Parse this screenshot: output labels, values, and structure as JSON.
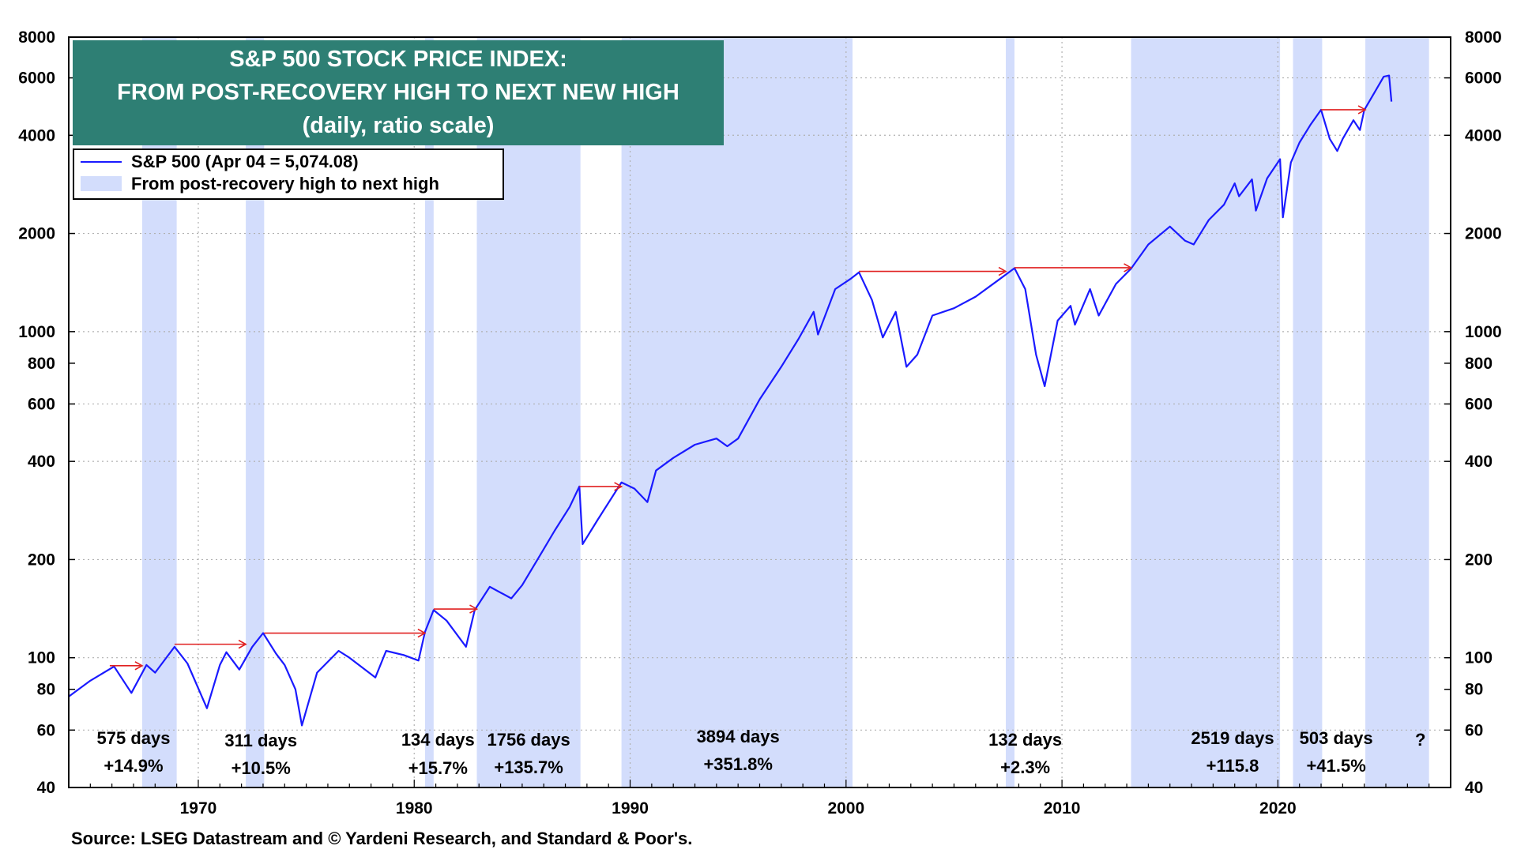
{
  "chart_data": {
    "type": "line",
    "title": [
      "S&P 500 STOCK PRICE INDEX:",
      "FROM POST-RECOVERY HIGH TO NEXT NEW HIGH",
      "(daily, ratio scale)"
    ],
    "y_scale": "log",
    "ylim": [
      40,
      8000
    ],
    "xlim": [
      1964,
      2028
    ],
    "x_ticks": [
      1970,
      1980,
      1990,
      2000,
      2010,
      2020
    ],
    "x_tick_labels": [
      "1970",
      "1980",
      "1990",
      "2000",
      "2010",
      "2020"
    ],
    "y_ticks": [
      40,
      60,
      80,
      100,
      200,
      400,
      600,
      800,
      1000,
      2000,
      4000,
      6000,
      8000
    ],
    "y_tick_labels": [
      "40",
      "60",
      "80",
      "100",
      "200",
      "400",
      "600",
      "800",
      "1000",
      "2000",
      "4000",
      "6000",
      "8000"
    ],
    "grid": true,
    "legend": {
      "position": "top-left",
      "entries": [
        {
          "label": "S&P 500 (Apr 04 = 5,074.08)",
          "style": "line",
          "color": "#1a1aff"
        },
        {
          "label": "From post-recovery high to next high",
          "style": "band",
          "color": "#d3ddfc"
        }
      ]
    },
    "series": [
      {
        "name": "S&P 500",
        "color": "#1a1aff",
        "points": [
          [
            1964.0,
            76
          ],
          [
            1965.0,
            85
          ],
          [
            1966.1,
            94
          ],
          [
            1966.9,
            78
          ],
          [
            1967.6,
            95
          ],
          [
            1968.0,
            90
          ],
          [
            1968.9,
            108
          ],
          [
            1969.5,
            96
          ],
          [
            1970.4,
            70
          ],
          [
            1971.0,
            95
          ],
          [
            1971.3,
            104
          ],
          [
            1971.9,
            92
          ],
          [
            1972.5,
            108
          ],
          [
            1973.0,
            119
          ],
          [
            1973.6,
            103
          ],
          [
            1974.0,
            95
          ],
          [
            1974.5,
            80
          ],
          [
            1974.8,
            62
          ],
          [
            1975.5,
            90
          ],
          [
            1976.5,
            105
          ],
          [
            1977.0,
            100
          ],
          [
            1978.2,
            87
          ],
          [
            1978.7,
            105
          ],
          [
            1979.5,
            102
          ],
          [
            1980.2,
            98
          ],
          [
            1980.5,
            120
          ],
          [
            1980.9,
            140
          ],
          [
            1981.5,
            130
          ],
          [
            1982.4,
            108
          ],
          [
            1982.8,
            140
          ],
          [
            1983.5,
            165
          ],
          [
            1984.5,
            152
          ],
          [
            1985.0,
            167
          ],
          [
            1985.9,
            210
          ],
          [
            1986.5,
            245
          ],
          [
            1987.2,
            290
          ],
          [
            1987.65,
            335
          ],
          [
            1987.8,
            223
          ],
          [
            1988.5,
            265
          ],
          [
            1989.6,
            345
          ],
          [
            1990.2,
            330
          ],
          [
            1990.8,
            300
          ],
          [
            1991.2,
            375
          ],
          [
            1992.0,
            410
          ],
          [
            1993.0,
            450
          ],
          [
            1994.0,
            470
          ],
          [
            1994.5,
            445
          ],
          [
            1995.0,
            470
          ],
          [
            1996.0,
            620
          ],
          [
            1997.0,
            780
          ],
          [
            1997.8,
            950
          ],
          [
            1998.5,
            1150
          ],
          [
            1998.7,
            980
          ],
          [
            1999.5,
            1350
          ],
          [
            2000.2,
            1450
          ],
          [
            2000.6,
            1520
          ],
          [
            2001.2,
            1250
          ],
          [
            2001.7,
            960
          ],
          [
            2002.3,
            1150
          ],
          [
            2002.8,
            780
          ],
          [
            2003.3,
            850
          ],
          [
            2004.0,
            1120
          ],
          [
            2005.0,
            1180
          ],
          [
            2006.0,
            1280
          ],
          [
            2007.0,
            1430
          ],
          [
            2007.8,
            1565
          ],
          [
            2008.3,
            1350
          ],
          [
            2008.8,
            850
          ],
          [
            2009.2,
            680
          ],
          [
            2009.8,
            1080
          ],
          [
            2010.4,
            1200
          ],
          [
            2010.6,
            1050
          ],
          [
            2011.3,
            1350
          ],
          [
            2011.7,
            1120
          ],
          [
            2012.5,
            1400
          ],
          [
            2013.2,
            1560
          ],
          [
            2014.0,
            1850
          ],
          [
            2015.0,
            2100
          ],
          [
            2015.7,
            1900
          ],
          [
            2016.1,
            1850
          ],
          [
            2016.8,
            2200
          ],
          [
            2017.5,
            2450
          ],
          [
            2018.0,
            2850
          ],
          [
            2018.2,
            2600
          ],
          [
            2018.8,
            2930
          ],
          [
            2018.98,
            2350
          ],
          [
            2019.5,
            2950
          ],
          [
            2020.1,
            3380
          ],
          [
            2020.23,
            2240
          ],
          [
            2020.6,
            3300
          ],
          [
            2021.0,
            3800
          ],
          [
            2021.5,
            4300
          ],
          [
            2022.0,
            4790
          ],
          [
            2022.4,
            3900
          ],
          [
            2022.75,
            3580
          ],
          [
            2023.0,
            3900
          ],
          [
            2023.5,
            4450
          ],
          [
            2023.8,
            4150
          ],
          [
            2024.0,
            4780
          ],
          [
            2024.5,
            5450
          ],
          [
            2024.9,
            6050
          ],
          [
            2025.15,
            6100
          ],
          [
            2025.26,
            5074
          ]
        ]
      }
    ],
    "shaded_periods": [
      {
        "start": 1967.4,
        "end": 1969.0
      },
      {
        "start": 1972.2,
        "end": 1973.05
      },
      {
        "start": 1980.5,
        "end": 1980.9
      },
      {
        "start": 1982.9,
        "end": 1987.7
      },
      {
        "start": 1989.6,
        "end": 2000.3
      },
      {
        "start": 2007.4,
        "end": 2007.8
      },
      {
        "start": 2013.2,
        "end": 2020.1
      },
      {
        "start": 2020.7,
        "end": 2022.05
      },
      {
        "start": 2024.05,
        "end": 2027.0
      }
    ],
    "arrows": [
      {
        "from": [
          1965.9,
          94.5
        ],
        "to": [
          1967.4,
          94.5
        ]
      },
      {
        "from": [
          1968.9,
          110
        ],
        "to": [
          1972.2,
          110
        ]
      },
      {
        "from": [
          1973.05,
          119
        ],
        "to": [
          1980.5,
          119
        ]
      },
      {
        "from": [
          1980.9,
          141
        ],
        "to": [
          1982.9,
          141
        ]
      },
      {
        "from": [
          1987.65,
          335
        ],
        "to": [
          1989.6,
          335
        ]
      },
      {
        "from": [
          2000.6,
          1530
        ],
        "to": [
          2007.4,
          1530
        ]
      },
      {
        "from": [
          2007.8,
          1570
        ],
        "to": [
          2013.2,
          1570
        ]
      },
      {
        "from": [
          2022.0,
          4790
        ],
        "to": [
          2024.05,
          4790
        ]
      }
    ],
    "annotations": [
      {
        "x": 1967.0,
        "days": "575 days",
        "gain": "+14.9%"
      },
      {
        "x": 1972.9,
        "days": "311 days",
        "gain": "+10.5%"
      },
      {
        "x": 1981.1,
        "days": "134 days",
        "gain": "+15.7%"
      },
      {
        "x": 1985.3,
        "days": "1756 days",
        "gain": "+135.7%"
      },
      {
        "x": 1995.0,
        "days": "3894 days",
        "gain": "+351.8%"
      },
      {
        "x": 2008.3,
        "days": "132 days",
        "gain": "+2.3%"
      },
      {
        "x": 2017.9,
        "days": "2519 days",
        "gain": "+115.8"
      },
      {
        "x": 2022.7,
        "days": "503 days",
        "gain": "+41.5%"
      },
      {
        "x": 2026.6,
        "days": "?",
        "gain": ""
      }
    ]
  },
  "colors": {
    "line": "#1a1aff",
    "band": "#d3ddfc",
    "arrow": "#e02020",
    "title_bg": "#2e7f74",
    "grid": "#b0b0b0"
  },
  "source": "Source: LSEG Datastream and © Yardeni Research, and Standard & Poor's."
}
